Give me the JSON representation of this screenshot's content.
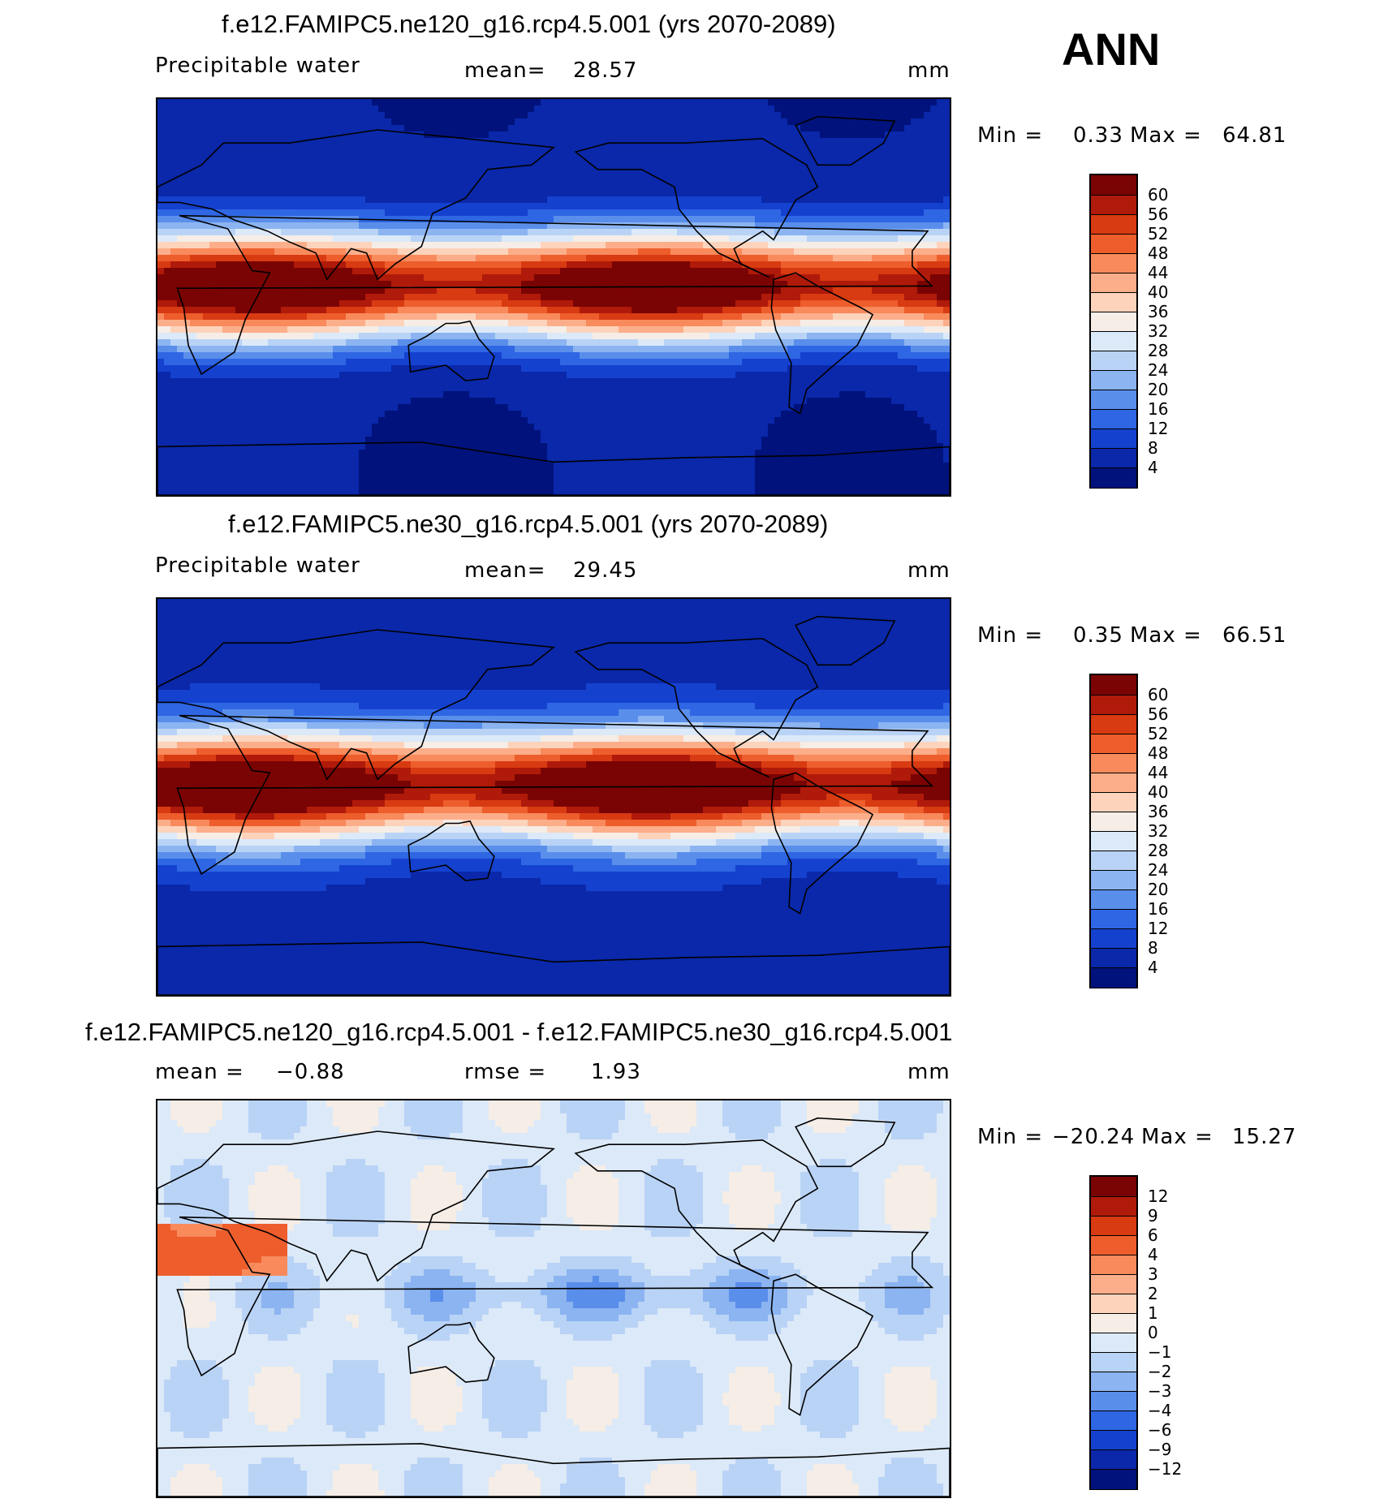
{
  "figure": {
    "season": "ANN"
  },
  "chart_data": [
    {
      "type": "heatmap",
      "title": "f.e12.FAMIPC5.ne120_g16.rcp4.5.001 (yrs 2070-2089)",
      "variable": "Precipitable water",
      "stat_label": "mean=",
      "stat_value": "28.57",
      "units": "mm",
      "min_label": "Min =",
      "min_value": "0.33",
      "max_label": "Max =",
      "max_value": "64.81",
      "contour_levels": [
        "60",
        "56",
        "52",
        "48",
        "44",
        "40",
        "36",
        "32",
        "28",
        "24",
        "20",
        "16",
        "12",
        "8",
        "4"
      ],
      "colors": [
        "#7a0403",
        "#b01a0a",
        "#d83a12",
        "#ee5d2c",
        "#f88a5c",
        "#fcae8a",
        "#fdd3bb",
        "#f5ede6",
        "#dce9f8",
        "#b9d3f6",
        "#8bb4f1",
        "#5a8eeb",
        "#2e66e3",
        "#1541cf",
        "#0a28a9",
        "#01127c"
      ],
      "palette": "red-blue",
      "map": "world-cylindrical-0E-360E"
    },
    {
      "type": "heatmap",
      "title": "f.e12.FAMIPC5.ne30_g16.rcp4.5.001 (yrs 2070-2089)",
      "variable": "Precipitable water",
      "stat_label": "mean=",
      "stat_value": "29.45",
      "units": "mm",
      "min_label": "Min =",
      "min_value": "0.35",
      "max_label": "Max =",
      "max_value": "66.51",
      "contour_levels": [
        "60",
        "56",
        "52",
        "48",
        "44",
        "40",
        "36",
        "32",
        "28",
        "24",
        "20",
        "16",
        "12",
        "8",
        "4"
      ],
      "colors": [
        "#7a0403",
        "#b01a0a",
        "#d83a12",
        "#ee5d2c",
        "#f88a5c",
        "#fcae8a",
        "#fdd3bb",
        "#f5ede6",
        "#dce9f8",
        "#b9d3f6",
        "#8bb4f1",
        "#5a8eeb",
        "#2e66e3",
        "#1541cf",
        "#0a28a9",
        "#01127c"
      ],
      "palette": "red-blue",
      "map": "world-cylindrical-0E-360E"
    },
    {
      "type": "heatmap",
      "title": "f.e12.FAMIPC5.ne120_g16.rcp4.5.001 - f.e12.FAMIPC5.ne30_g16.rcp4.5.001",
      "variable": "",
      "stat_label": "mean =",
      "stat_value": "−0.88",
      "stat2_label": "rmse =",
      "stat2_value": "1.93",
      "units": "mm",
      "min_label": "Min =",
      "min_value": "−20.24",
      "max_label": "Max =",
      "max_value": "15.27",
      "contour_levels": [
        "12",
        "9",
        "6",
        "4",
        "3",
        "2",
        "1",
        "0",
        "−1",
        "−2",
        "−3",
        "−4",
        "−6",
        "−9",
        "−12"
      ],
      "colors": [
        "#7a0403",
        "#b01a0a",
        "#d83a12",
        "#ee5d2c",
        "#f88a5c",
        "#fcae8a",
        "#fdd3bb",
        "#f5ede6",
        "#dce9f8",
        "#b9d3f6",
        "#8bb4f1",
        "#5a8eeb",
        "#2e66e3",
        "#1541cf",
        "#0a28a9",
        "#01127c"
      ],
      "palette": "diverging",
      "map": "world-cylindrical-0E-360E"
    }
  ]
}
